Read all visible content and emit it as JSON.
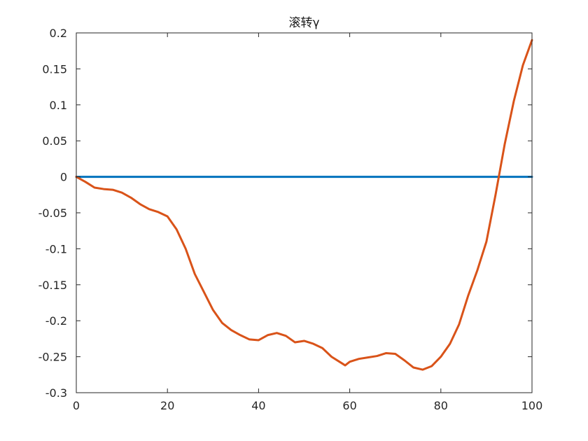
{
  "chart_data": {
    "type": "line",
    "title": "滚转γ",
    "xlabel": "",
    "ylabel": "",
    "xlim": [
      0,
      100
    ],
    "ylim": [
      -0.3,
      0.2
    ],
    "x_ticks": [
      0,
      20,
      40,
      60,
      80,
      100
    ],
    "y_ticks": [
      -0.3,
      -0.25,
      -0.2,
      -0.15,
      -0.1,
      -0.05,
      0,
      0.05,
      0.1,
      0.15,
      0.2
    ],
    "x_tick_labels": [
      "0",
      "20",
      "40",
      "60",
      "80",
      "100"
    ],
    "y_tick_labels": [
      "-0.3",
      "-0.25",
      "-0.2",
      "-0.15",
      "-0.1",
      "-0.05",
      "0",
      "0.05",
      "0.1",
      "0.15",
      "0.2"
    ],
    "grid": false,
    "box": true,
    "series": [
      {
        "color": "#0072BD",
        "x": [
          0,
          100
        ],
        "y": [
          0,
          0
        ]
      },
      {
        "color": "#D95319",
        "x": [
          0,
          2,
          4,
          6,
          8,
          10,
          12,
          14,
          16,
          18,
          20,
          22,
          24,
          26,
          28,
          30,
          32,
          34,
          36,
          38,
          40,
          42,
          44,
          46,
          48,
          50,
          52,
          54,
          56,
          58,
          59,
          60,
          62,
          64,
          66,
          68,
          70,
          72,
          74,
          76,
          78,
          80,
          82,
          84,
          86,
          88,
          90,
          92,
          94,
          96,
          98,
          100
        ],
        "y": [
          0,
          -0.007,
          -0.015,
          -0.017,
          -0.018,
          -0.022,
          -0.029,
          -0.038,
          -0.045,
          -0.049,
          -0.055,
          -0.073,
          -0.1,
          -0.135,
          -0.16,
          -0.185,
          -0.203,
          -0.213,
          -0.22,
          -0.226,
          -0.227,
          -0.22,
          -0.217,
          -0.221,
          -0.23,
          -0.228,
          -0.232,
          -0.238,
          -0.25,
          -0.258,
          -0.262,
          -0.257,
          -0.253,
          -0.251,
          -0.249,
          -0.245,
          -0.246,
          -0.255,
          -0.265,
          -0.268,
          -0.263,
          -0.25,
          -0.232,
          -0.205,
          -0.165,
          -0.13,
          -0.09,
          -0.025,
          0.045,
          0.105,
          0.155,
          0.19
        ]
      }
    ]
  }
}
